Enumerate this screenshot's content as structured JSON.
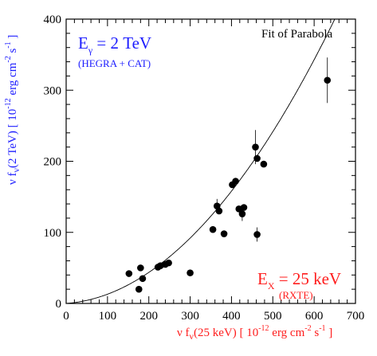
{
  "colors": {
    "blue": "#1c1cff",
    "red": "#ff1c1c",
    "black": "#000000"
  },
  "chart_data": {
    "type": "scatter",
    "xlim": [
      0,
      700
    ],
    "ylim": [
      0,
      400
    ],
    "xticks": [
      "0",
      "100",
      "200",
      "300",
      "400",
      "500",
      "600",
      "700"
    ],
    "yticks": [
      "0",
      "100",
      "200",
      "300",
      "400"
    ],
    "xlabel": {
      "main": "ν f",
      "sub": "ν",
      "rest": "(25 keV) [ 10",
      "exp1": "-12",
      "mid": " erg cm",
      "exp2": "-2",
      "s": " s",
      "exp3": "-1",
      "end": " ]"
    },
    "ylabel": {
      "main": "ν f",
      "sub": "ν",
      "rest": "(2 TeV) [ 10",
      "exp1": "-12",
      "mid": " erg cm",
      "exp2": "-2",
      "s": " s",
      "exp3": "-1",
      "end": " ]"
    },
    "annotations": {
      "fit_label": "Fit of Parabola",
      "gamma_label": "E",
      "gamma_sub": "γ",
      "gamma_value": " = 2 TeV",
      "gamma_source": "(HEGRA + CAT)",
      "xray_label": "E",
      "xray_sub": "X",
      "xray_value": " = 25 keV",
      "xray_source": "(RXTE)"
    },
    "fit": {
      "form": "parabola",
      "a": 0.000883,
      "b": 0.0417,
      "c": 0
    },
    "points": [
      {
        "x": 152,
        "y": 42,
        "err": 0
      },
      {
        "x": 176,
        "y": 20,
        "err": 0
      },
      {
        "x": 180,
        "y": 50,
        "err": 0
      },
      {
        "x": 185,
        "y": 35,
        "err": 0
      },
      {
        "x": 222,
        "y": 51,
        "err": 0
      },
      {
        "x": 228,
        "y": 53,
        "err": 0
      },
      {
        "x": 240,
        "y": 55,
        "err": 0
      },
      {
        "x": 248,
        "y": 57,
        "err": 0
      },
      {
        "x": 300,
        "y": 43,
        "err": 0
      },
      {
        "x": 355,
        "y": 104,
        "err": 0
      },
      {
        "x": 365,
        "y": 137,
        "err": 10
      },
      {
        "x": 370,
        "y": 130,
        "err": 0
      },
      {
        "x": 382,
        "y": 98,
        "err": 0
      },
      {
        "x": 402,
        "y": 167,
        "err": 0
      },
      {
        "x": 410,
        "y": 172,
        "err": 0
      },
      {
        "x": 418,
        "y": 133,
        "err": 0
      },
      {
        "x": 426,
        "y": 126,
        "err": 10
      },
      {
        "x": 430,
        "y": 135,
        "err": 0
      },
      {
        "x": 458,
        "y": 220,
        "err": 24
      },
      {
        "x": 462,
        "y": 204,
        "err": 0
      },
      {
        "x": 462,
        "y": 97,
        "err": 10
      },
      {
        "x": 478,
        "y": 196,
        "err": 0
      },
      {
        "x": 632,
        "y": 314,
        "err": 32
      }
    ]
  }
}
